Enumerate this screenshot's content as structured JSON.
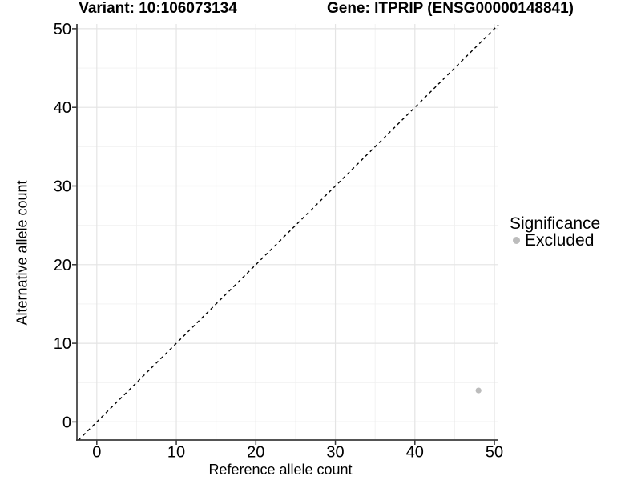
{
  "chart_data": {
    "type": "scatter",
    "titles": {
      "left": "Variant: 10:106073134",
      "right": "Gene: ITPRIP (ENSG00000148841)"
    },
    "xlabel": "Reference allele count",
    "ylabel": "Alternative allele count",
    "xlim": [
      -2.5,
      50.5
    ],
    "ylim": [
      -2.3,
      50.6
    ],
    "xticks": [
      0,
      10,
      20,
      30,
      40,
      50
    ],
    "yticks": [
      0,
      10,
      20,
      30,
      40,
      50
    ],
    "grid": "major and minor, light gray on white",
    "identity_line": {
      "equation": "y = x",
      "style": "dashed",
      "color": "#000000"
    },
    "points": [
      {
        "x": 48,
        "y": 4,
        "series": "Excluded"
      }
    ],
    "legend": {
      "title": "Significance",
      "position": "right",
      "entries": [
        {
          "label": "Excluded",
          "color": "#bcbcbc",
          "marker": "circle"
        }
      ]
    },
    "colors": {
      "axis_line": "#3c3c3c",
      "tick_mark": "#333333",
      "grid_major": "#e4e4e4",
      "grid_minor": "#f0f0f0",
      "text": "#000000",
      "point": "#bcbcbc"
    }
  }
}
